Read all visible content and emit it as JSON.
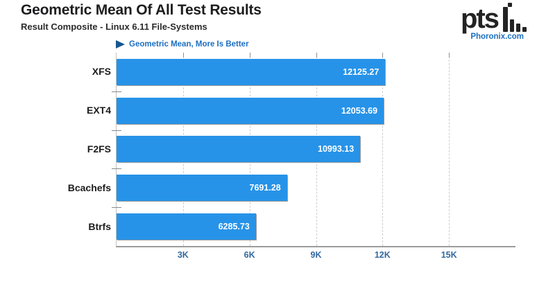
{
  "header": {
    "title": "Geometric Mean Of All Test Results",
    "subtitle": "Result Composite - Linux 6.11 File-Systems"
  },
  "logo": {
    "brand": "pts",
    "site": "Phoronix.com"
  },
  "legend": {
    "label": "Geometric Mean, More Is Better"
  },
  "chart_data": {
    "type": "bar",
    "orientation": "horizontal",
    "title": "Geometric Mean Of All Test Results",
    "subtitle": "Result Composite - Linux 6.11 File-Systems",
    "xlabel": "",
    "ylabel": "",
    "categories": [
      "XFS",
      "EXT4",
      "F2FS",
      "Bcachefs",
      "Btrfs"
    ],
    "values": [
      12125.27,
      12053.69,
      10993.13,
      7691.28,
      6285.73
    ],
    "value_labels": [
      "12125.27",
      "12053.69",
      "10993.13",
      "7691.28",
      "6285.73"
    ],
    "xlim": [
      0,
      18000
    ],
    "xticks": [
      {
        "label": "3K",
        "value": 3000
      },
      {
        "label": "6K",
        "value": 6000
      },
      {
        "label": "9K",
        "value": 9000
      },
      {
        "label": "12K",
        "value": 12000
      },
      {
        "label": "15K",
        "value": 15000
      }
    ],
    "grid": "dashed-vertical",
    "legend_position": "top-left",
    "colors": {
      "bar": "#2793e8",
      "value_text": "#ffffff",
      "tick_text": "#33689f",
      "legend_text": "#1d6ec0",
      "legend_arrow": "#14568f",
      "axis": "#9b9b9b",
      "grid": "#cccccc"
    }
  }
}
